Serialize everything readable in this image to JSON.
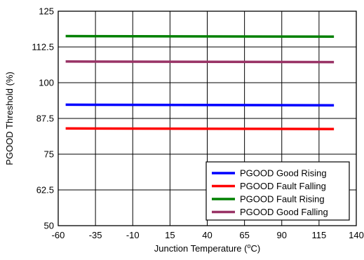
{
  "chart_data": {
    "type": "line",
    "title": "",
    "xlabel": "Junction Temperature (",
    "xlabel_sup": "o",
    "xlabel_suffix": "C)",
    "ylabel": "PGOOD Threshold (%)",
    "xlim": [
      -60,
      140
    ],
    "ylim": [
      50,
      125
    ],
    "x_ticks": [
      "-60",
      "-35",
      "-10",
      "15",
      "40",
      "65",
      "90",
      "115",
      "140"
    ],
    "y_ticks": [
      "50",
      "62.5",
      "75",
      "87.5",
      "100",
      "112.5",
      "125"
    ],
    "grid": true,
    "legend_position": "bottom-right",
    "x": [
      -55,
      125
    ],
    "series": [
      {
        "name": "PGOOD Good Rising",
        "color": "#0000ff",
        "values": [
          92.3,
          92.1
        ]
      },
      {
        "name": "PGOOD Fault Falling",
        "color": "#ff0000",
        "values": [
          84.0,
          83.8
        ]
      },
      {
        "name": "PGOOD Fault Rising",
        "color": "#008000",
        "values": [
          116.3,
          116.1
        ]
      },
      {
        "name": "PGOOD Good Falling",
        "color": "#993366",
        "values": [
          107.4,
          107.2
        ]
      }
    ]
  }
}
